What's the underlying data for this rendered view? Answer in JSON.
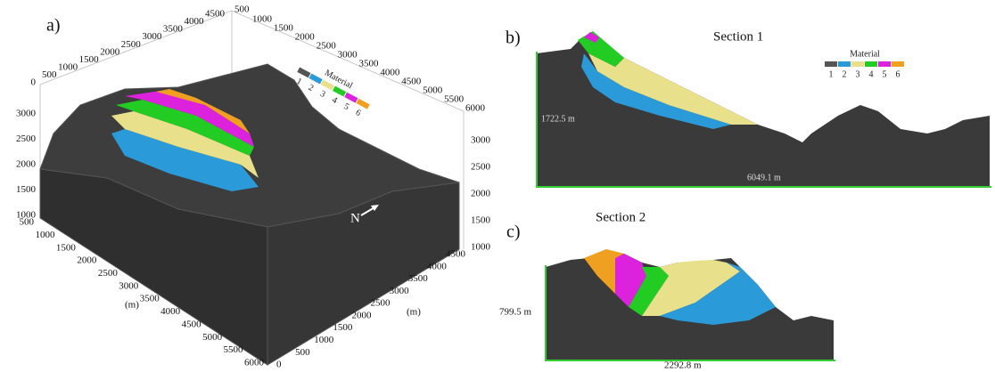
{
  "panel_a": {
    "label": "a)",
    "legend": {
      "title": "Material",
      "items": [
        "1",
        "2",
        "3",
        "4",
        "5",
        "6"
      ]
    },
    "north": "N",
    "axis_units": [
      "(m)",
      "(m)"
    ],
    "corner_label": "500",
    "axes": {
      "vertical_left": [
        3000,
        2500,
        2000,
        1500,
        1000
      ],
      "vertical_right": [
        3000,
        2500,
        2000,
        1500,
        1000
      ],
      "front_left": [
        500,
        1000,
        1500,
        2000,
        2500,
        3000,
        3500,
        4000,
        4500,
        5000,
        5500,
        6000
      ],
      "front_right": [
        0,
        500,
        1000,
        1500,
        2000,
        2500,
        3000,
        3500,
        4000,
        4500
      ],
      "back_left": [
        0,
        500,
        1000,
        1500,
        2000,
        2500,
        3000,
        3500,
        4000,
        4500
      ],
      "back_right": [
        1000,
        1500,
        2000,
        2500,
        3000,
        3500,
        4000,
        4500,
        5000,
        5500,
        6000
      ]
    }
  },
  "panel_b": {
    "label": "b)",
    "title": "Section 1",
    "legend": {
      "title": "Material",
      "items": [
        "1",
        "2",
        "3",
        "4",
        "5",
        "6"
      ]
    },
    "height_label": "1722.5 m",
    "width_label": "6049.1 m"
  },
  "panel_c": {
    "label": "c)",
    "title": "Section 2",
    "height_label": "799.5 m",
    "width_label": "2292.8 m"
  }
}
